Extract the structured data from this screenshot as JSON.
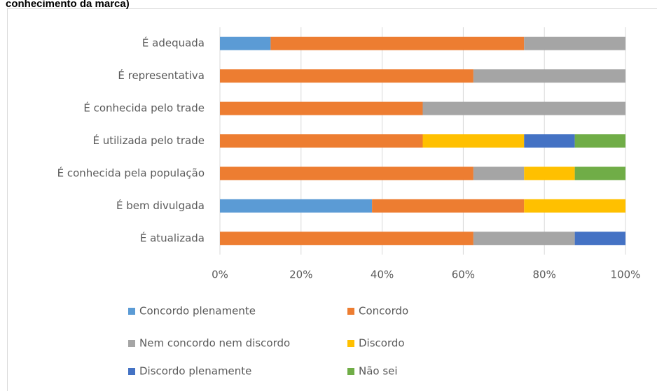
{
  "chart_data": {
    "type": "stacked-barh",
    "title": "conhecimento da marca)",
    "categories": [
      "É adequada",
      "É representativa",
      "É conhecida pelo trade",
      "É utilizada pelo trade",
      "É conhecida pela população",
      "É bem divulgada",
      "É atualizada"
    ],
    "series": [
      {
        "name": "Concordo plenamente",
        "color": "#5b9bd5",
        "values": [
          12.5,
          0,
          0,
          0,
          0,
          37.5,
          0
        ]
      },
      {
        "name": "Concordo",
        "color": "#ed7d31",
        "values": [
          62.5,
          62.5,
          50,
          50,
          62.5,
          37.5,
          62.5
        ]
      },
      {
        "name": "Nem concordo nem discordo",
        "color": "#a5a5a5",
        "values": [
          25,
          37.5,
          50,
          0,
          12.5,
          0,
          25
        ]
      },
      {
        "name": "Discordo",
        "color": "#ffc000",
        "values": [
          0,
          0,
          0,
          25,
          12.5,
          25,
          0
        ]
      },
      {
        "name": "Discordo plenamente",
        "color": "#4472c4",
        "values": [
          0,
          0,
          0,
          12.5,
          0,
          0,
          12.5
        ]
      },
      {
        "name": "Não sei",
        "color": "#70ad47",
        "values": [
          0,
          0,
          0,
          12.5,
          12.5,
          0,
          0
        ]
      }
    ],
    "xlim": [
      0,
      100
    ],
    "xticks": [
      {
        "value": 0,
        "label": "0%"
      },
      {
        "value": 20,
        "label": "20%"
      },
      {
        "value": 40,
        "label": "40%"
      },
      {
        "value": 60,
        "label": "60%"
      },
      {
        "value": 80,
        "label": "80%"
      },
      {
        "value": 100,
        "label": "100%"
      }
    ],
    "grid": true
  }
}
